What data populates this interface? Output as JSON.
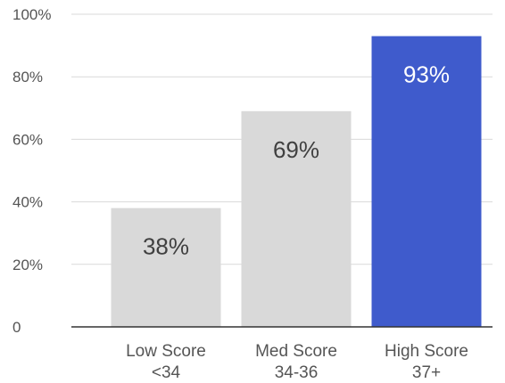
{
  "chart_data": {
    "type": "bar",
    "categories": [
      [
        "Low Score",
        "<34"
      ],
      [
        "Med Score",
        "34-36"
      ],
      [
        "High Score",
        "37+"
      ]
    ],
    "values": [
      38,
      69,
      93
    ],
    "data_labels": [
      "38%",
      "69%",
      "93%"
    ],
    "bar_colors": [
      "#d9d9d9",
      "#d9d9d9",
      "#3f5bcc"
    ],
    "data_label_colors": [
      "#404040",
      "#404040",
      "#ffffff"
    ],
    "ylim": [
      0,
      100
    ],
    "yticks": [
      {
        "value": 0,
        "label": "0"
      },
      {
        "value": 20,
        "label": "20%"
      },
      {
        "value": 40,
        "label": "40%"
      },
      {
        "value": 60,
        "label": "60%"
      },
      {
        "value": 80,
        "label": "80%"
      },
      {
        "value": 100,
        "label": "100%"
      }
    ],
    "grid": true,
    "legend": "none"
  }
}
